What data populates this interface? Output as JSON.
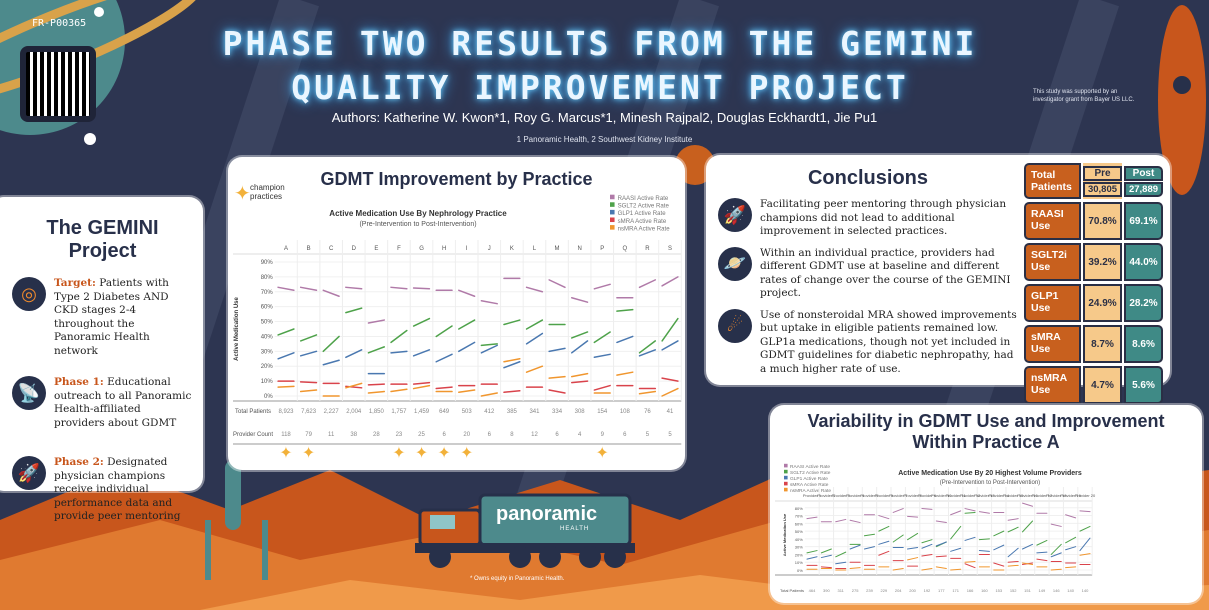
{
  "poster_code": "FR-P00365",
  "title_line1": "PHASE TWO RESULTS FROM THE GEMINI",
  "title_line2": "QUALITY IMPROVEMENT PROJECT",
  "authors": "Authors: Katherine W. Kwon*1, Roy G. Marcus*1, Minesh Rajpal2, Douglas Eckhardt1, Jie Pu1",
  "affiliations": "1 Panoramic Health, 2 Southwest Kidney Institute",
  "support_note": "This study was supported by an investigator grant from Bayer US LLC.",
  "equity_note": "* Owns equity in Panoramic Health.",
  "logo_text": "panoramic",
  "logo_sub": "HEALTH",
  "gemini": {
    "title": "The GEMINI Project",
    "items": [
      {
        "label": "Target:",
        "text": " Patients with Type 2 Diabetes AND CKD stages 2-4 throughout the Panoramic Health network",
        "icon": "target-icon"
      },
      {
        "label": "Phase 1:",
        "text": " Educational outreach to all Panoramic Health-affiliated providers about GDMT",
        "icon": "satellite-dish-icon"
      },
      {
        "label": "Phase 2:",
        "text": " Designated physician champions receive individual performance data and provide peer mentoring",
        "icon": "rocket-icon"
      }
    ]
  },
  "practice_panel": {
    "title": "GDMT Improvement by Practice",
    "champion_label": "champion practices"
  },
  "conclusions": {
    "title": "Conclusions",
    "items": [
      "Facilitating peer mentoring through physician champions did not lead to additional improvement in selected practices.",
      "Within an individual practice, providers had different GDMT use at baseline and different rates of change over the course of the GEMINI project.",
      "Use of nonsteroidal MRA showed improvements but uptake in eligible patients remained low. GLP1a medications, though not yet included in GDMT guidelines for diabetic nephropathy, had a much higher rate of use."
    ]
  },
  "stats": {
    "header": {
      "label": "Total Patients",
      "pre_label": "Pre",
      "post_label": "Post",
      "pre": "30,805",
      "post": "27,889"
    },
    "rows": [
      {
        "label": "RAASI Use",
        "pre": "70.8%",
        "post": "69.1%"
      },
      {
        "label": "SGLT2i Use",
        "pre": "39.2%",
        "post": "44.0%"
      },
      {
        "label": "GLP1 Use",
        "pre": "24.9%",
        "post": "28.2%"
      },
      {
        "label": "sMRA Use",
        "pre": "8.7%",
        "post": "8.6%"
      },
      {
        "label": "nsMRA Use",
        "pre": "4.7%",
        "post": "5.6%"
      }
    ]
  },
  "variability_panel": {
    "title": "Variability in GDMT Use and Improvement Within Practice A"
  },
  "colors": {
    "RAASI": "#b07aa8",
    "SGLT2": "#4ea24a",
    "GLP1": "#4a78b0",
    "sMRA": "#d9434b",
    "nsMRA": "#f0962e"
  },
  "chart_data": [
    {
      "type": "line",
      "title": "Active Medication Use By Nephrology Practice",
      "subtitle": "(Pre-Intervention to Post-Intervention)",
      "ylabel": "Active Medication Use",
      "ylim": [
        0,
        90
      ],
      "yticks": [
        "0%",
        "10%",
        "20%",
        "30%",
        "40%",
        "50%",
        "60%",
        "70%",
        "80%",
        "90%"
      ],
      "categories": [
        "A",
        "B",
        "C",
        "D",
        "E",
        "F",
        "G",
        "H",
        "I",
        "J",
        "K",
        "L",
        "M",
        "N",
        "P",
        "Q",
        "R",
        "S"
      ],
      "legend": [
        "RAASI Active Rate",
        "SGLT2 Active Rate",
        "GLP1 Active Rate",
        "sMRA Active Rate",
        "nsMRA Active Rate"
      ],
      "legend_position": "top-right",
      "row_labels": [
        "Total Patients",
        "Provider Count"
      ],
      "total_patients": [
        "8,923",
        "7,623",
        "2,227",
        "2,004",
        "1,850",
        "1,757",
        "1,459",
        "649",
        "503",
        "412",
        "385",
        "341",
        "334",
        "308",
        "154",
        "108",
        "76",
        "41"
      ],
      "provider_count": [
        "118",
        "79",
        "11",
        "38",
        "28",
        "23",
        "25",
        "6",
        "20",
        "6",
        "8",
        "12",
        "6",
        "4",
        "9",
        "6",
        "5",
        "5"
      ],
      "champion": [
        true,
        true,
        false,
        false,
        false,
        true,
        true,
        true,
        true,
        false,
        false,
        false,
        false,
        false,
        true,
        false,
        false,
        false
      ],
      "series": [
        {
          "name": "RAASI",
          "pre": [
            73,
            73,
            71,
            73,
            49,
            73,
            72.5,
            71,
            71,
            64,
            79,
            73,
            78,
            66,
            72,
            66,
            73,
            74
          ],
          "post": [
            71,
            71,
            67,
            72,
            51,
            72,
            72,
            71,
            67,
            62,
            79,
            70,
            73,
            63,
            75,
            66,
            78,
            80
          ]
        },
        {
          "name": "SGLT2",
          "pre": [
            41,
            37,
            30,
            56,
            29,
            36,
            47,
            40,
            45,
            34,
            48,
            45,
            48,
            39,
            36,
            57,
            29,
            37
          ],
          "post": [
            45,
            41,
            40,
            59,
            33,
            44,
            52,
            47,
            51,
            35,
            51,
            51,
            48,
            43,
            43,
            58,
            37,
            52
          ]
        },
        {
          "name": "GLP1",
          "pre": [
            25,
            27,
            21,
            26,
            15,
            29,
            27,
            23,
            30,
            29,
            19,
            35,
            30,
            29,
            26,
            36,
            27,
            31
          ],
          "post": [
            29,
            30,
            24,
            31,
            15,
            30,
            31,
            28,
            36,
            34,
            23,
            42,
            32,
            37,
            28,
            40,
            31,
            37
          ]
        },
        {
          "name": "sMRA",
          "pre": [
            10,
            9.5,
            8.5,
            6.5,
            7.5,
            8,
            8,
            5,
            7,
            8,
            2.5,
            6,
            4,
            9,
            4,
            7,
            5,
            12
          ],
          "post": [
            10,
            9,
            8.5,
            5.5,
            8,
            8,
            9,
            6,
            7,
            8,
            3.5,
            6,
            2,
            10,
            7,
            7,
            5,
            10
          ]
        },
        {
          "name": "nsMRA",
          "pre": [
            6,
            3,
            0,
            5.5,
            2,
            3,
            5,
            3,
            2.5,
            0,
            23,
            16,
            12,
            13,
            2,
            14,
            1.5,
            0
          ],
          "post": [
            6.5,
            4,
            0,
            8.5,
            3,
            4.5,
            7,
            3,
            4,
            2,
            25,
            20,
            13,
            15,
            2,
            16,
            3,
            5
          ]
        }
      ]
    },
    {
      "type": "line",
      "title": "Active Medication Use By 20 Highest Volume Providers",
      "subtitle": "(Pre-Intervention to Post-Intervention)",
      "ylabel": "Active Medication Use",
      "ylim": [
        0,
        90
      ],
      "yticks": [
        "0%",
        "10%",
        "20%",
        "30%",
        "40%",
        "50%",
        "60%",
        "70%",
        "80%"
      ],
      "categories": [
        "Provider 1",
        "Provider 2",
        "Provider 3",
        "Provider 4",
        "Provider 5",
        "Provider 6",
        "Provider 7",
        "Provider 8",
        "Provider 9",
        "Provider 10",
        "Provider 11",
        "Provider 12",
        "Provider 13",
        "Provider 14",
        "Provider 15",
        "Provider 16",
        "Provider 17",
        "Provider 18",
        "Provider 19",
        "Provider 20"
      ],
      "legend": [
        "RAASI Active Rate",
        "SGLT2 Active Rate",
        "GLP1 Active Rate",
        "sMRA Active Rate",
        "nsMRA Active Rate"
      ],
      "legend_position": "top-left",
      "row_labels": [
        "Total Patients"
      ],
      "total_patients": [
        "464",
        "390",
        "311",
        "275",
        "239",
        "229",
        "204",
        "200",
        "192",
        "177",
        "171",
        "166",
        "160",
        "153",
        "152",
        "151",
        "149",
        "146",
        "140",
        "140"
      ],
      "series": [
        {
          "name": "RAASI",
          "pre": [
            66,
            62,
            62,
            64,
            71,
            70,
            74,
            69,
            79,
            63,
            71,
            79,
            75,
            74,
            64,
            86,
            73,
            59,
            71,
            76
          ],
          "post": [
            68,
            62,
            65,
            61,
            71,
            66,
            79,
            68,
            78,
            61,
            76,
            76,
            73,
            74,
            66,
            82,
            73,
            56,
            67,
            75
          ]
        },
        {
          "name": "SGLT2",
          "pre": [
            22,
            22,
            17,
            33,
            44,
            50,
            36,
            39,
            35,
            30,
            40,
            73,
            39,
            44,
            49,
            49,
            32,
            20,
            35,
            50
          ],
          "post": [
            25,
            27,
            23,
            33,
            46,
            56,
            45,
            47,
            39,
            36,
            56,
            74,
            40,
            50,
            55,
            63,
            38,
            33,
            42,
            56
          ]
        },
        {
          "name": "GLP1",
          "pre": [
            14,
            16,
            8,
            27,
            27,
            33,
            29,
            27,
            28,
            31,
            24,
            38,
            25,
            26,
            17,
            27,
            22,
            17,
            26,
            25
          ],
          "post": [
            17,
            19,
            10,
            32,
            30,
            37,
            29,
            29,
            33,
            36,
            28,
            42,
            24,
            32,
            28,
            33,
            23,
            22,
            30,
            41
          ]
        },
        {
          "name": "sMRA",
          "pre": [
            6,
            4,
            2,
            10,
            6,
            19,
            12,
            5,
            18,
            17,
            15,
            8,
            20,
            9,
            10,
            7,
            14,
            11,
            9,
            7
          ],
          "post": [
            6,
            3,
            2,
            10,
            6,
            24,
            12,
            5,
            20,
            18,
            15,
            3,
            20,
            5,
            11,
            9,
            12,
            11,
            9,
            7
          ]
        },
        {
          "name": "nsMRA",
          "pre": [
            1,
            2,
            0,
            2,
            1,
            4,
            0,
            13,
            0,
            4,
            0,
            10,
            4,
            0,
            5,
            9,
            4,
            0,
            3,
            19
          ],
          "post": [
            1,
            2,
            0,
            3,
            1,
            4,
            2,
            16,
            2,
            2,
            1,
            11,
            4,
            0,
            6,
            7,
            4,
            1,
            4,
            21
          ]
        }
      ]
    }
  ]
}
